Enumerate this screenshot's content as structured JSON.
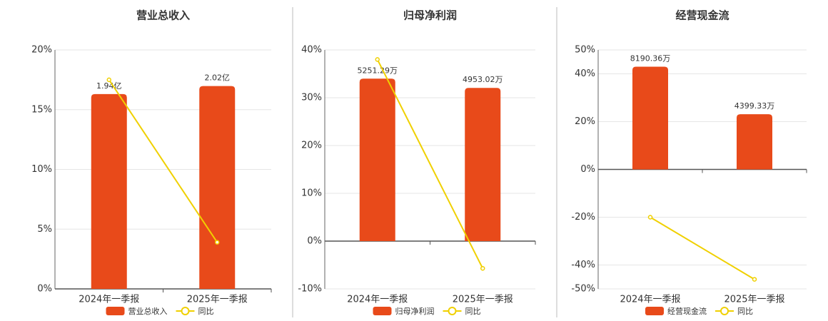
{
  "chart_data": [
    {
      "type": "bar",
      "title": "营业总收入",
      "categories": [
        "2024年一季报",
        "2025年一季报"
      ],
      "series": [
        {
          "name": "营业总收入",
          "color": "#e84a1a",
          "values": [
            1.94,
            2.02
          ],
          "value_labels": [
            "1.94亿",
            "2.02亿"
          ],
          "axis": "y2"
        },
        {
          "name": "同比",
          "type": "line",
          "color": "#f0d000",
          "values": [
            17.5,
            3.9
          ]
        }
      ],
      "ylim": [
        0,
        20
      ],
      "yticks": [
        {
          "value": 0,
          "label": "0%"
        },
        {
          "value": 5,
          "label": "5%"
        },
        {
          "value": 10,
          "label": "10%"
        },
        {
          "value": 15,
          "label": "15%"
        },
        {
          "value": 20,
          "label": "20%"
        }
      ],
      "y2lim": [
        0,
        2.38
      ],
      "grid": true
    },
    {
      "type": "bar",
      "title": "归母净利润",
      "categories": [
        "2024年一季报",
        "2025年一季报"
      ],
      "series": [
        {
          "name": "归母净利润",
          "color": "#e84a1a",
          "values": [
            5251.29,
            4953.02
          ],
          "value_labels": [
            "5251.29万",
            "4953.02万"
          ],
          "axis": "y2"
        },
        {
          "name": "同比",
          "type": "line",
          "color": "#f0d000",
          "values": [
            38,
            -5.7
          ]
        }
      ],
      "ylim": [
        -10,
        40
      ],
      "yticks": [
        {
          "value": -10,
          "label": "-10%"
        },
        {
          "value": 0,
          "label": "0%"
        },
        {
          "value": 10,
          "label": "10%"
        },
        {
          "value": 20,
          "label": "20%"
        },
        {
          "value": 30,
          "label": "30%"
        },
        {
          "value": 40,
          "label": "40%"
        }
      ],
      "y2lim": [
        -1545,
        6180
      ],
      "grid": true
    },
    {
      "type": "bar",
      "title": "经营现金流",
      "categories": [
        "2024年一季报",
        "2025年一季报"
      ],
      "series": [
        {
          "name": "经营现金流",
          "color": "#e84a1a",
          "values": [
            8190.36,
            4399.33
          ],
          "value_labels": [
            "8190.36万",
            "4399.33万"
          ],
          "axis": "y2"
        },
        {
          "name": "同比",
          "type": "line",
          "color": "#f0d000",
          "values": [
            -20,
            -46
          ]
        }
      ],
      "ylim": [
        -50,
        50
      ],
      "yticks": [
        {
          "value": -50,
          "label": "-50%"
        },
        {
          "value": -40,
          "label": "-40%"
        },
        {
          "value": -20,
          "label": "-20%"
        },
        {
          "value": 0,
          "label": "0%"
        },
        {
          "value": 20,
          "label": "20%"
        },
        {
          "value": 40,
          "label": "40%"
        },
        {
          "value": 50,
          "label": "50%"
        }
      ],
      "y2lim": [
        -9525,
        9525
      ],
      "grid": true
    }
  ]
}
